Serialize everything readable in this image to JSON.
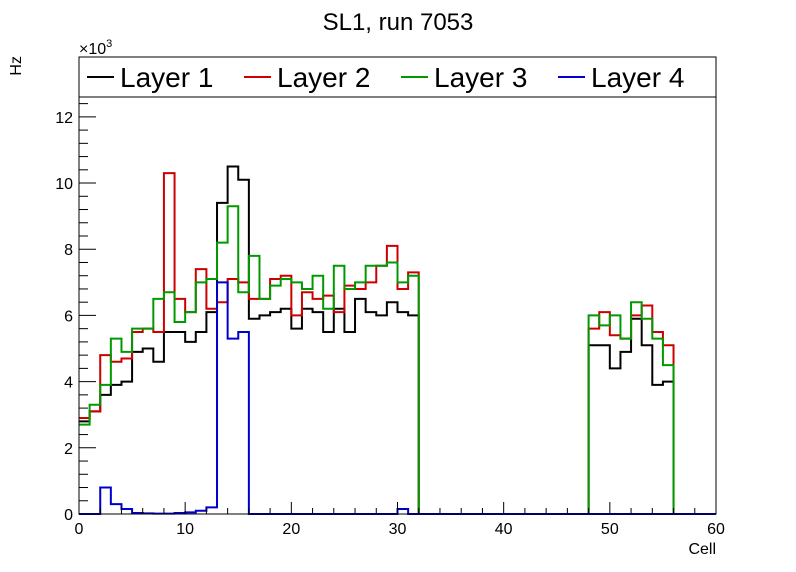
{
  "chart_data": {
    "type": "line",
    "title": "SL1, run 7053",
    "xlabel": "Cell",
    "ylabel": "Hz",
    "y_multiplier_label": "×10",
    "y_multiplier_exponent": "3",
    "xlim": [
      0,
      60
    ],
    "ylim": [
      0,
      12.6
    ],
    "x_major_ticks": [
      0,
      10,
      20,
      30,
      40,
      50,
      60
    ],
    "y_major_ticks": [
      0,
      2,
      4,
      6,
      8,
      10,
      12
    ],
    "grid": false,
    "legend_position": "top",
    "bin_width": 1,
    "x_start": 0,
    "series": [
      {
        "name": "Layer 1",
        "color": "#000000",
        "values": [
          2.8,
          3.1,
          3.6,
          3.9,
          4.0,
          4.9,
          5.0,
          4.6,
          5.5,
          5.5,
          5.2,
          5.5,
          6.1,
          9.4,
          10.5,
          10.1,
          5.9,
          6.0,
          6.1,
          6.2,
          5.6,
          6.2,
          6.1,
          5.5,
          6.2,
          5.5,
          6.5,
          6.1,
          6.0,
          6.4,
          6.1,
          6.0,
          0,
          0,
          0,
          0,
          0,
          0,
          0,
          0,
          0,
          0,
          0,
          0,
          0,
          0,
          0,
          0,
          5.1,
          5.1,
          4.4,
          4.9,
          5.9,
          5.1,
          3.9,
          4.0,
          0,
          0,
          0,
          0
        ]
      },
      {
        "name": "Layer 2",
        "color": "#cc0000",
        "values": [
          2.9,
          3.1,
          4.8,
          4.6,
          4.7,
          5.5,
          5.6,
          5.5,
          10.3,
          6.5,
          6.1,
          7.4,
          6.2,
          6.4,
          7.1,
          7.0,
          6.5,
          6.5,
          7.1,
          7.2,
          6.0,
          6.7,
          6.5,
          6.6,
          6.1,
          6.9,
          6.8,
          7.0,
          7.5,
          8.1,
          6.8,
          7.3,
          0,
          0,
          0,
          0,
          0,
          0,
          0,
          0,
          0,
          0,
          0,
          0,
          0,
          0,
          0,
          0,
          5.6,
          6.1,
          5.4,
          5.3,
          6.0,
          6.3,
          5.5,
          5.1,
          0,
          0,
          0,
          0
        ]
      },
      {
        "name": "Layer 3",
        "color": "#009900",
        "values": [
          2.7,
          3.3,
          3.9,
          5.3,
          4.9,
          5.6,
          5.6,
          6.5,
          6.7,
          5.8,
          6.1,
          7.0,
          7.1,
          8.2,
          9.3,
          6.7,
          7.8,
          6.5,
          6.9,
          7.1,
          7.0,
          6.8,
          7.2,
          6.2,
          7.5,
          6.8,
          7.0,
          7.5,
          7.5,
          7.6,
          7.0,
          7.2,
          0,
          0,
          0,
          0,
          0,
          0,
          0,
          0,
          0,
          0,
          0,
          0,
          0,
          0,
          0,
          0,
          6.0,
          5.7,
          6.0,
          5.3,
          6.4,
          5.9,
          5.3,
          4.5,
          0,
          0,
          0,
          0
        ]
      },
      {
        "name": "Layer 4",
        "color": "#0000cc",
        "values": [
          0,
          0,
          0.8,
          0.3,
          0.15,
          0.03,
          0.02,
          0.01,
          0.01,
          0.03,
          0.05,
          0.1,
          0.2,
          7.0,
          5.3,
          5.5,
          0,
          0,
          0,
          0,
          0,
          0,
          0,
          0,
          0,
          0,
          0,
          0,
          0,
          0,
          0.15,
          0,
          0,
          0,
          0,
          0,
          0,
          0,
          0,
          0,
          0,
          0,
          0,
          0,
          0,
          0,
          0,
          0,
          0,
          0,
          0,
          0,
          0,
          0,
          0,
          0,
          0,
          0,
          0,
          0
        ]
      }
    ]
  }
}
